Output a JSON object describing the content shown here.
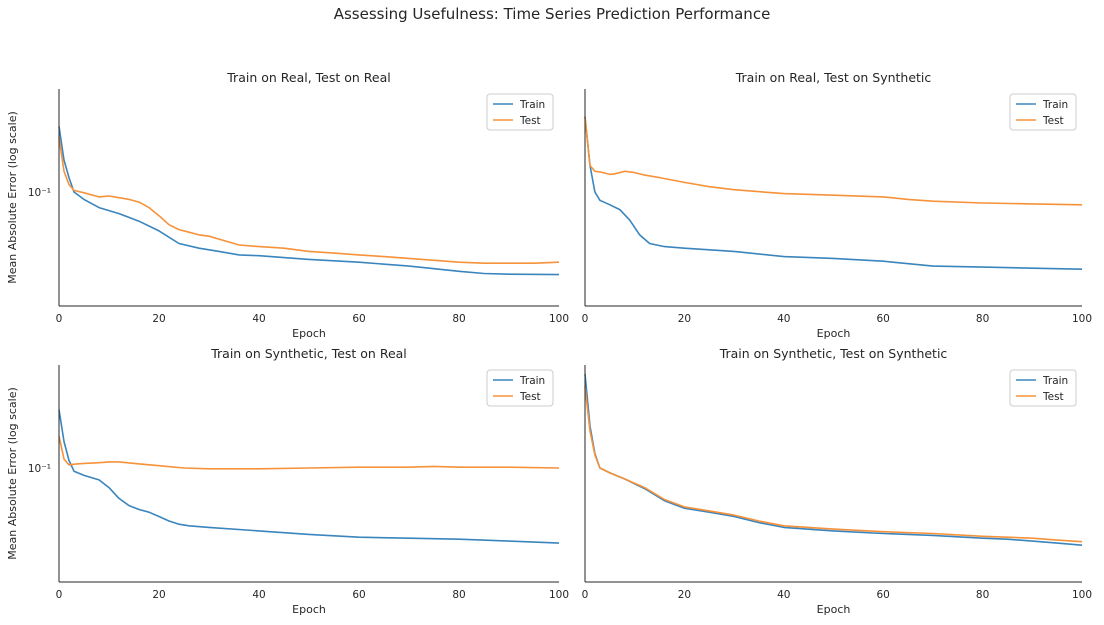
{
  "title": "Assessing Usefulness: Time Series Prediction Performance",
  "colors": {
    "train": "#3a85bd",
    "test": "#f6923a",
    "axis": "#262626"
  },
  "chart_data": [
    {
      "type": "line",
      "title": "Train on Real, Test on Real",
      "xlabel": "Epoch",
      "ylabel": "Mean Absolute Error (log scale)",
      "yscale": "log",
      "xlim": [
        0,
        100
      ],
      "ylim": [
        0.0235,
        0.37
      ],
      "xticks": [
        0,
        20,
        40,
        60,
        80,
        100
      ],
      "ytick_labels": [
        {
          "value": 0.1,
          "label": "10⁻¹"
        }
      ],
      "legend": "top-right",
      "grid": false,
      "series": [
        {
          "name": "Train",
          "x": [
            0,
            1,
            2,
            3,
            5,
            8,
            12,
            16,
            20,
            24,
            28,
            32,
            36,
            40,
            50,
            60,
            70,
            80,
            85,
            90,
            100
          ],
          "values": [
            0.23,
            0.15,
            0.12,
            0.1,
            0.091,
            0.082,
            0.076,
            0.069,
            0.061,
            0.052,
            0.049,
            0.047,
            0.045,
            0.0445,
            0.0425,
            0.041,
            0.039,
            0.0365,
            0.0355,
            0.0352,
            0.035
          ]
        },
        {
          "name": "Test",
          "x": [
            0,
            1,
            2,
            3,
            5,
            8,
            10,
            12,
            14,
            16,
            18,
            20,
            22,
            24,
            26,
            28,
            30,
            32,
            34,
            36,
            40,
            45,
            50,
            55,
            60,
            65,
            70,
            75,
            80,
            85,
            90,
            95,
            100
          ],
          "values": [
            0.2,
            0.13,
            0.11,
            0.102,
            0.099,
            0.094,
            0.095,
            0.093,
            0.091,
            0.088,
            0.082,
            0.074,
            0.066,
            0.062,
            0.06,
            0.058,
            0.057,
            0.055,
            0.053,
            0.051,
            0.05,
            0.049,
            0.047,
            0.046,
            0.045,
            0.044,
            0.043,
            0.042,
            0.041,
            0.0405,
            0.0405,
            0.0405,
            0.041
          ]
        }
      ]
    },
    {
      "type": "line",
      "title": "Train on Real, Test on Synthetic",
      "xlabel": "Epoch",
      "ylabel": "",
      "yscale": "log",
      "xlim": [
        0,
        100
      ],
      "ylim": [
        0.0235,
        0.37
      ],
      "xticks": [
        0,
        20,
        40,
        60,
        80,
        100
      ],
      "ytick_labels": [],
      "legend": "top-right",
      "grid": false,
      "series": [
        {
          "name": "Train",
          "x": [
            0,
            1,
            2,
            3,
            5,
            7,
            9,
            11,
            13,
            16,
            20,
            25,
            30,
            40,
            50,
            60,
            70,
            80,
            90,
            100
          ],
          "values": [
            0.26,
            0.14,
            0.1,
            0.09,
            0.085,
            0.08,
            0.07,
            0.058,
            0.052,
            0.05,
            0.049,
            0.048,
            0.047,
            0.044,
            0.043,
            0.0415,
            0.039,
            0.0385,
            0.038,
            0.0375
          ]
        },
        {
          "name": "Test",
          "x": [
            0,
            1,
            2,
            3,
            5,
            6,
            8,
            10,
            12,
            15,
            20,
            25,
            30,
            40,
            50,
            60,
            65,
            70,
            80,
            90,
            100
          ],
          "values": [
            0.26,
            0.14,
            0.13,
            0.129,
            0.125,
            0.126,
            0.13,
            0.128,
            0.124,
            0.12,
            0.113,
            0.107,
            0.103,
            0.098,
            0.096,
            0.094,
            0.091,
            0.089,
            0.087,
            0.086,
            0.085
          ]
        }
      ]
    },
    {
      "type": "line",
      "title": "Train on Synthetic, Test on Real",
      "xlabel": "Epoch",
      "ylabel": "Mean Absolute Error (log scale)",
      "yscale": "log",
      "xlim": [
        0,
        100
      ],
      "ylim": [
        0.0235,
        0.37
      ],
      "xticks": [
        0,
        20,
        40,
        60,
        80,
        100
      ],
      "ytick_labels": [
        {
          "value": 0.1,
          "label": "10⁻¹"
        }
      ],
      "legend": "top-right",
      "grid": false,
      "series": [
        {
          "name": "Train",
          "x": [
            0,
            1,
            2,
            3,
            5,
            8,
            10,
            12,
            14,
            16,
            18,
            20,
            22,
            24,
            26,
            30,
            40,
            50,
            60,
            70,
            80,
            90,
            100
          ],
          "values": [
            0.21,
            0.14,
            0.11,
            0.096,
            0.091,
            0.086,
            0.078,
            0.068,
            0.062,
            0.059,
            0.057,
            0.054,
            0.051,
            0.049,
            0.048,
            0.047,
            0.045,
            0.043,
            0.0415,
            0.041,
            0.0405,
            0.0395,
            0.0385
          ]
        },
        {
          "name": "Test",
          "x": [
            0,
            1,
            2,
            3,
            5,
            8,
            10,
            12,
            15,
            20,
            25,
            30,
            35,
            40,
            50,
            60,
            70,
            75,
            80,
            90,
            100
          ],
          "values": [
            0.15,
            0.112,
            0.104,
            0.105,
            0.106,
            0.107,
            0.108,
            0.108,
            0.106,
            0.103,
            0.1,
            0.099,
            0.099,
            0.099,
            0.1,
            0.101,
            0.101,
            0.102,
            0.101,
            0.101,
            0.1
          ]
        }
      ]
    },
    {
      "type": "line",
      "title": "Train on Synthetic, Test on Synthetic",
      "xlabel": "Epoch",
      "ylabel": "",
      "yscale": "log",
      "xlim": [
        0,
        100
      ],
      "ylim": [
        0.0235,
        0.37
      ],
      "xticks": [
        0,
        20,
        40,
        60,
        80,
        100
      ],
      "ytick_labels": [],
      "legend": "top-right",
      "grid": false,
      "series": [
        {
          "name": "Train",
          "x": [
            0,
            1,
            2,
            3,
            5,
            8,
            12,
            16,
            20,
            25,
            30,
            35,
            40,
            50,
            60,
            70,
            80,
            85,
            90,
            95,
            100
          ],
          "values": [
            0.33,
            0.17,
            0.12,
            0.1,
            0.094,
            0.087,
            0.077,
            0.066,
            0.06,
            0.057,
            0.054,
            0.05,
            0.047,
            0.045,
            0.0435,
            0.0425,
            0.041,
            0.0405,
            0.0395,
            0.0385,
            0.0375
          ]
        },
        {
          "name": "Test",
          "x": [
            0,
            1,
            2,
            3,
            5,
            8,
            12,
            16,
            20,
            25,
            30,
            35,
            40,
            50,
            60,
            70,
            80,
            85,
            90,
            95,
            100
          ],
          "values": [
            0.28,
            0.16,
            0.118,
            0.1,
            0.094,
            0.087,
            0.078,
            0.067,
            0.061,
            0.058,
            0.055,
            0.051,
            0.048,
            0.046,
            0.0445,
            0.0435,
            0.042,
            0.0415,
            0.041,
            0.04,
            0.0392
          ]
        }
      ]
    }
  ]
}
